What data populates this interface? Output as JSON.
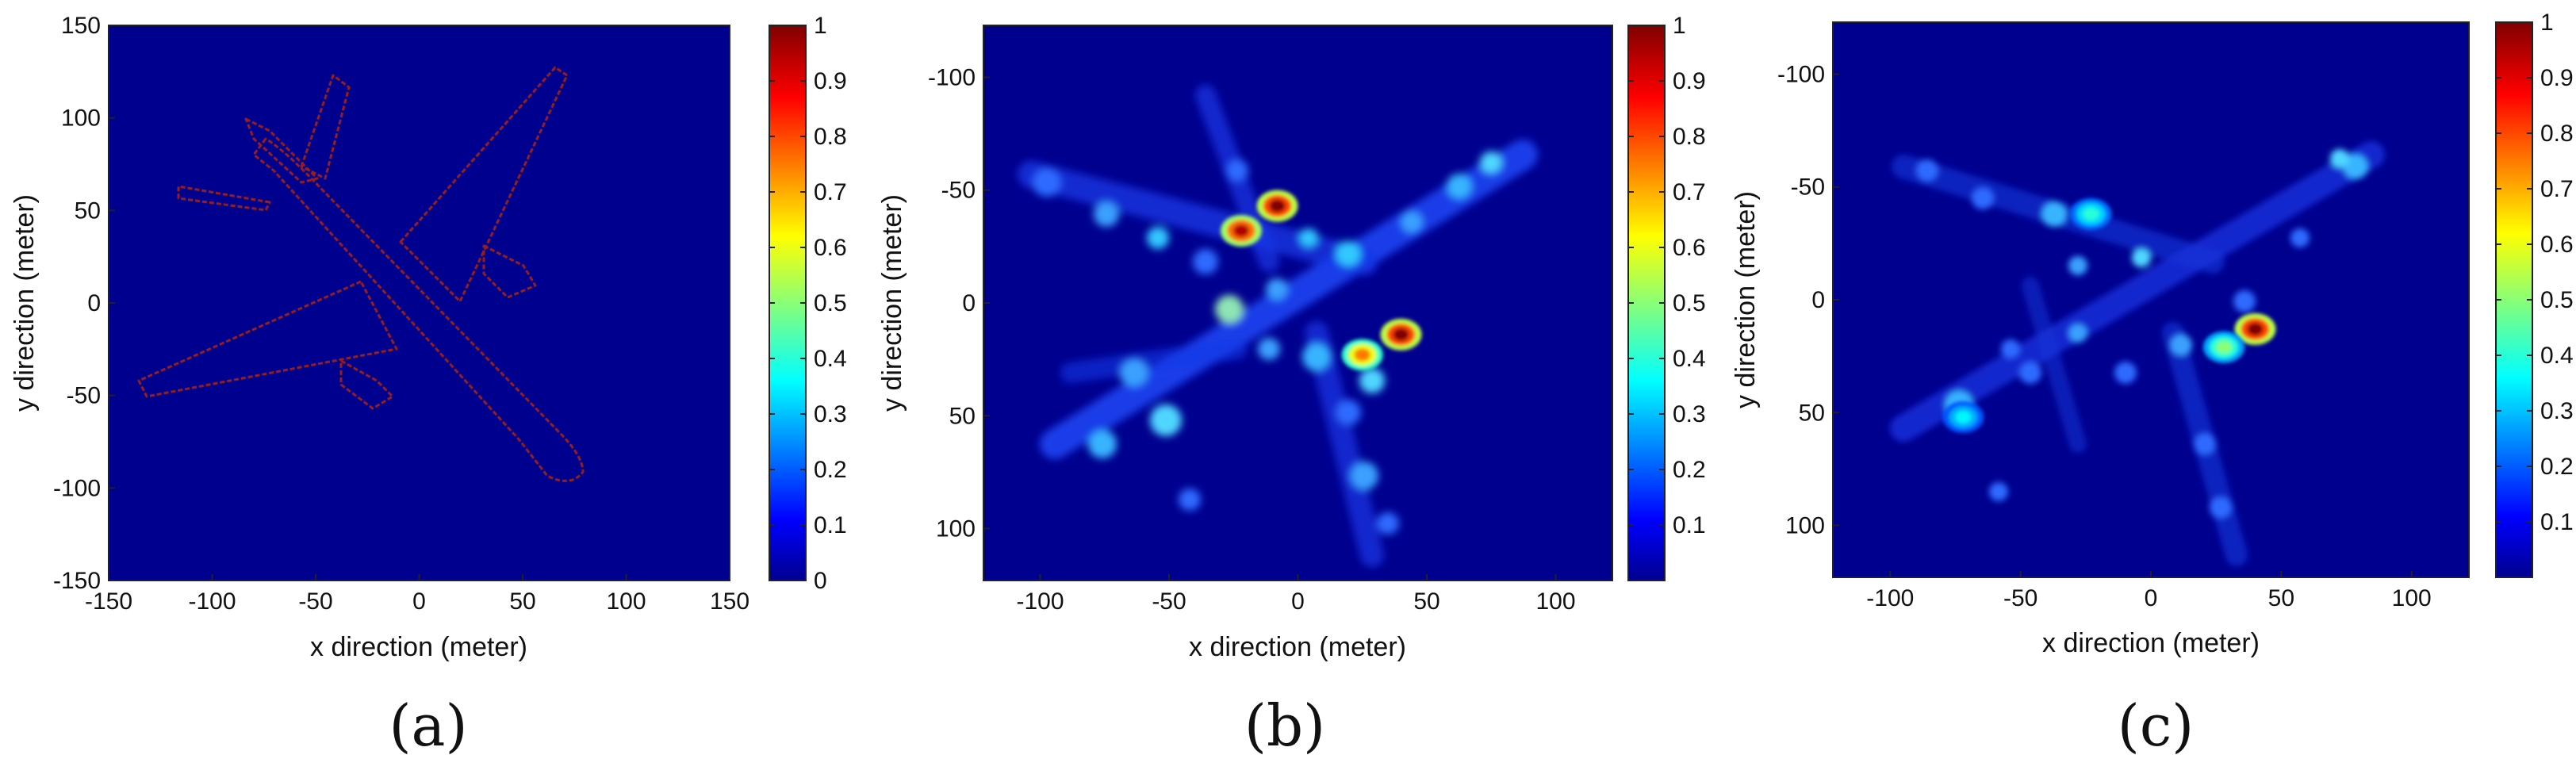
{
  "chart_data": [
    {
      "type": "heatmap",
      "panel_label": "(a)",
      "xlabel": "x direction (meter)",
      "ylabel": "y direction (meter)",
      "xlim": [
        -150,
        150
      ],
      "ylim": [
        -150,
        150
      ],
      "y_reversed": false,
      "xticks": [
        -150,
        -100,
        -50,
        0,
        50,
        100,
        150
      ],
      "yticks": [
        150,
        100,
        50,
        0,
        -50,
        -100,
        -150
      ],
      "colorbar": {
        "min": 0,
        "max": 1,
        "ticks": [
          0,
          0.1,
          0.2,
          0.3,
          0.4,
          0.5,
          0.6,
          0.7,
          0.8,
          0.9,
          1
        ],
        "colormap": "jet"
      },
      "background_value": 0,
      "target_value": 1,
      "content": "airplane outline"
    },
    {
      "type": "heatmap",
      "panel_label": "(b)",
      "xlabel": "x direction (meter)",
      "ylabel": "y direction (meter)",
      "xlim": [
        -122,
        122
      ],
      "ylim": [
        -123,
        123
      ],
      "y_reversed": true,
      "xticks": [
        -100,
        -50,
        0,
        50,
        100
      ],
      "yticks": [
        -100,
        -50,
        0,
        50,
        100
      ],
      "colorbar": {
        "min": 0,
        "max": 1,
        "ticks": [
          0.1,
          0.2,
          0.3,
          0.4,
          0.5,
          0.6,
          0.7,
          0.8,
          0.9,
          1
        ],
        "colormap": "jet"
      },
      "background_value": 0.05,
      "hot_spots": [
        {
          "x": -8,
          "y": -43,
          "value": 1.0
        },
        {
          "x": -22,
          "y": -32,
          "value": 0.95
        },
        {
          "x": 40,
          "y": 14,
          "value": 1.0
        },
        {
          "x": 25,
          "y": 23,
          "value": 0.75
        }
      ]
    },
    {
      "type": "heatmap",
      "panel_label": "(c)",
      "xlabel": "x direction (meter)",
      "ylabel": "y direction (meter)",
      "xlim": [
        -122,
        122
      ],
      "ylim": [
        -123,
        123
      ],
      "y_reversed": true,
      "xticks": [
        -100,
        -50,
        0,
        50,
        100
      ],
      "yticks": [
        -100,
        -50,
        0,
        50,
        100
      ],
      "colorbar": {
        "min": 0,
        "max": 1,
        "ticks": [
          0.1,
          0.2,
          0.3,
          0.4,
          0.5,
          0.6,
          0.7,
          0.8,
          0.9,
          1
        ],
        "colormap": "jet"
      },
      "background_value": 0.05,
      "hot_spots": [
        {
          "x": 40,
          "y": 13,
          "value": 1.0
        },
        {
          "x": 28,
          "y": 21,
          "value": 0.5
        },
        {
          "x": -23,
          "y": -38,
          "value": 0.4
        },
        {
          "x": -72,
          "y": 52,
          "value": 0.35
        }
      ]
    }
  ],
  "colors": {
    "background": "#ffffff",
    "jet_low": "#00008f",
    "field_background": "#00008f",
    "outline": "#9a1c1c"
  }
}
